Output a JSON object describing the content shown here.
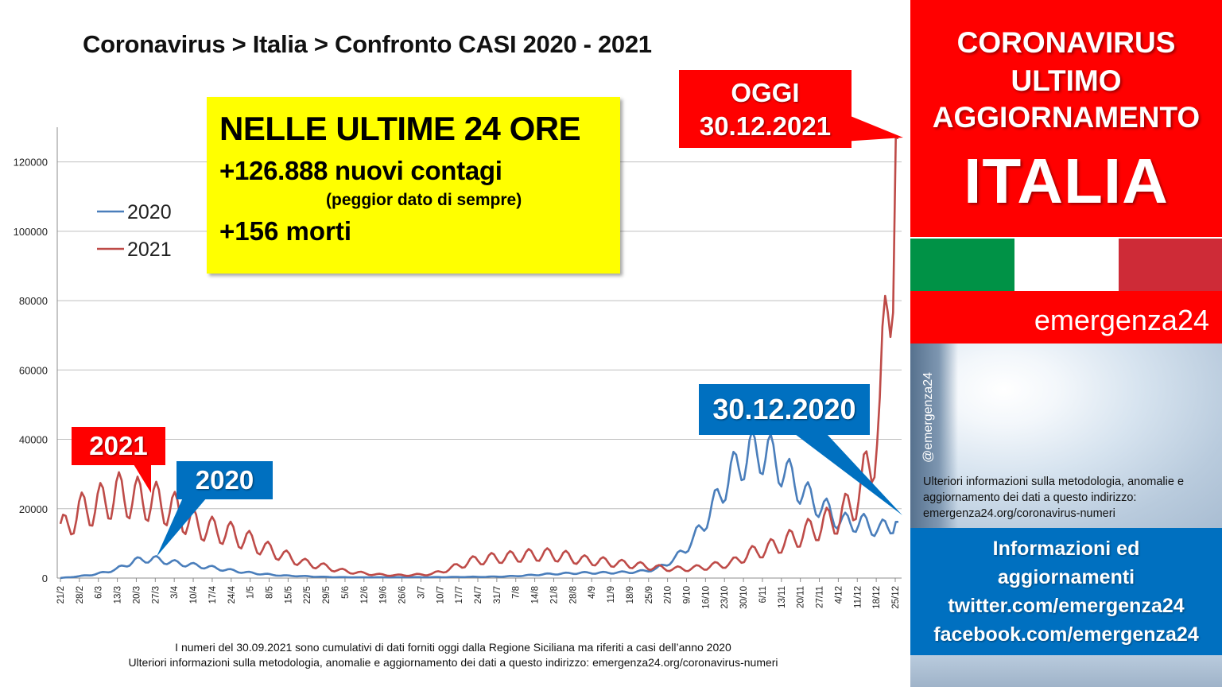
{
  "header": {
    "title": "Coronavirus > Italia > Confronto CASI 2020 - 2021"
  },
  "highlight_box": {
    "heading": "NELLE ULTIME 24 ORE",
    "cases": "+126.888 nuovi contagi",
    "note": "(peggior dato di sempre)",
    "deaths": "+156 morti"
  },
  "callouts": {
    "today_line1": "OGGI",
    "today_line2": "30.12.2021",
    "label_2021": "2021",
    "label_2020": "2020",
    "label_2020_end": "30.12.2020"
  },
  "footnote": {
    "line1": "I numeri del 30.09.2021 sono cumulativi di dati forniti oggi dalla Regione Siciliana ma riferiti a casi dell’anno 2020",
    "line2": "Ulteriori informazioni sulla metodologia, anomalie e aggiornamento dei dati a questo indirizzo: emergenza24.org/coronavirus-numeri"
  },
  "panel": {
    "line1": "CORONAVIRUS",
    "line2": "ULTIMO",
    "line3": "AGGIORNAMENTO",
    "line4": "ITALIA",
    "brand": "emergenza24",
    "handle": "@emergenza24",
    "info_text": "Ulteriori informazioni sulla metodologia, anomalie e aggiornamento dei dati a questo indirizzo: emergenza24.org/coronavirus-numeri",
    "info1": "Informazioni ed",
    "info2": "aggiornamenti",
    "info3": "twitter.com/emergenza24",
    "info4": "facebook.com/emergenza24"
  },
  "colors": {
    "series_2020": "#4a7ebb",
    "series_2021": "#be4b48",
    "accent_red": "#ff0000",
    "accent_blue": "#0070c0",
    "highlight": "#ffff00"
  },
  "chart_data": {
    "type": "line",
    "title": "Coronavirus > Italia > Confronto CASI 2020 - 2021",
    "ylim": [
      0,
      130000
    ],
    "yticks": [
      0,
      20000,
      40000,
      60000,
      80000,
      100000,
      120000
    ],
    "grid": true,
    "legend_position": "top-left",
    "x_tick_labels": [
      "21/2",
      "28/2",
      "6/3",
      "13/3",
      "20/3",
      "27/3",
      "3/4",
      "10/4",
      "17/4",
      "24/4",
      "1/5",
      "8/5",
      "15/5",
      "22/5",
      "29/5",
      "5/6",
      "12/6",
      "19/6",
      "26/6",
      "3/7",
      "10/7",
      "17/7",
      "24/7",
      "31/7",
      "7/8",
      "14/8",
      "21/8",
      "28/8",
      "4/9",
      "11/9",
      "18/9",
      "25/9",
      "2/10",
      "9/10",
      "16/10",
      "23/10",
      "30/10",
      "6/11",
      "13/11",
      "20/11",
      "27/11",
      "4/12",
      "11/12",
      "18/12",
      "25/12"
    ],
    "series": [
      {
        "name": "2020",
        "weekly_values": [
          20,
          500,
          1200,
          2500,
          5000,
          5500,
          4500,
          3800,
          3100,
          2300,
          1600,
          1100,
          700,
          550,
          350,
          250,
          200,
          220,
          230,
          240,
          250,
          290,
          340,
          380,
          480,
          750,
          1100,
          1300,
          1500,
          1500,
          1600,
          1800,
          2600,
          5500,
          11000,
          20000,
          30000,
          36000,
          36000,
          30000,
          24000,
          20000,
          16000,
          16000,
          14000,
          16202
        ]
      },
      {
        "name": "2021",
        "weekly_values": [
          13500,
          19000,
          21000,
          24000,
          23000,
          22000,
          20000,
          16000,
          14000,
          13000,
          11000,
          8500,
          6500,
          4500,
          3500,
          2200,
          1500,
          1000,
          800,
          900,
          1200,
          2800,
          4800,
          5600,
          6000,
          6500,
          6800,
          6300,
          5200,
          4800,
          4200,
          3700,
          3000,
          2600,
          2800,
          3500,
          4200,
          7000,
          8500,
          10500,
          13000,
          15500,
          18000,
          25000,
          45000,
          126888
        ]
      }
    ]
  }
}
